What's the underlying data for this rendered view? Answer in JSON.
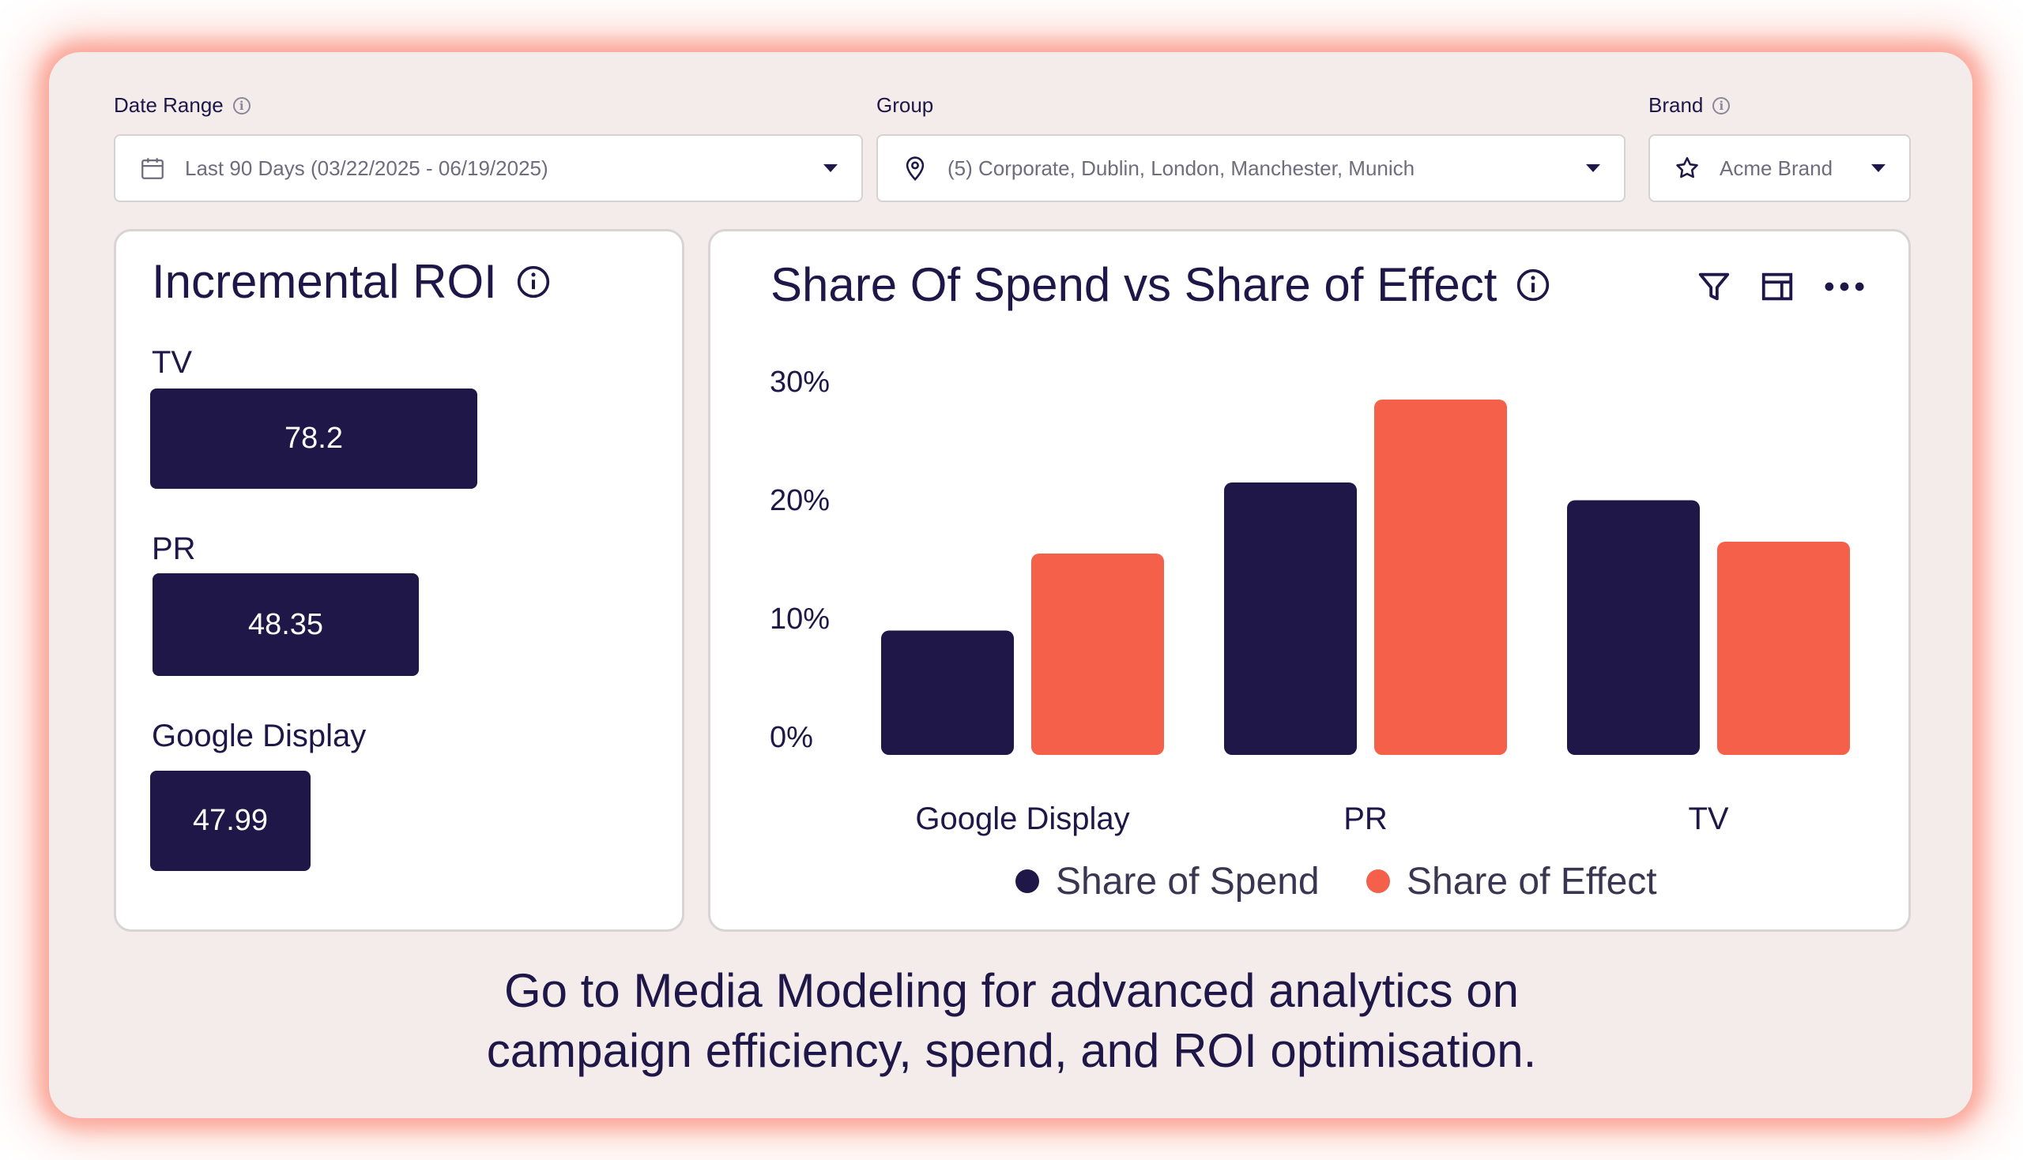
{
  "filters": {
    "date_range": {
      "label": "Date Range",
      "value": "Last 90 Days (03/22/2025 - 06/19/2025)"
    },
    "group": {
      "label": "Group",
      "value": "(5) Corporate, Dublin, London, Manchester, Munich"
    },
    "brand": {
      "label": "Brand",
      "value": "Acme Brand"
    }
  },
  "roi_card": {
    "title": "Incremental ROI",
    "items": [
      {
        "label": "TV",
        "value": "78.2",
        "fraction": 1.0
      },
      {
        "label": "PR",
        "value": "48.35",
        "fraction": 0.8
      },
      {
        "label": "Google Display",
        "value": "47.99",
        "fraction": 0.5
      }
    ]
  },
  "sos_card": {
    "title": "Share Of Spend vs Share of Effect"
  },
  "chart_data": {
    "type": "bar",
    "title": "Share Of Spend vs Share of Effect",
    "categories": [
      "Google Display",
      "PR",
      "TV"
    ],
    "series": [
      {
        "name": "Share of Spend",
        "color": "#1e1748",
        "values": [
          10.5,
          23,
          21.5
        ]
      },
      {
        "name": "Share of Effect",
        "color": "#f4604a",
        "values": [
          17,
          30,
          18
        ]
      }
    ],
    "y_ticks": [
      "0%",
      "10%",
      "20%",
      "30%"
    ],
    "ylim": [
      0,
      30
    ],
    "legend": "bottom",
    "grid": false
  },
  "footer": {
    "line1": "Go to Media Modeling for advanced analytics on",
    "line2": "campaign efficiency, spend, and ROI optimisation."
  },
  "colors": {
    "navy": "#1e1748",
    "coral": "#f4604a"
  }
}
